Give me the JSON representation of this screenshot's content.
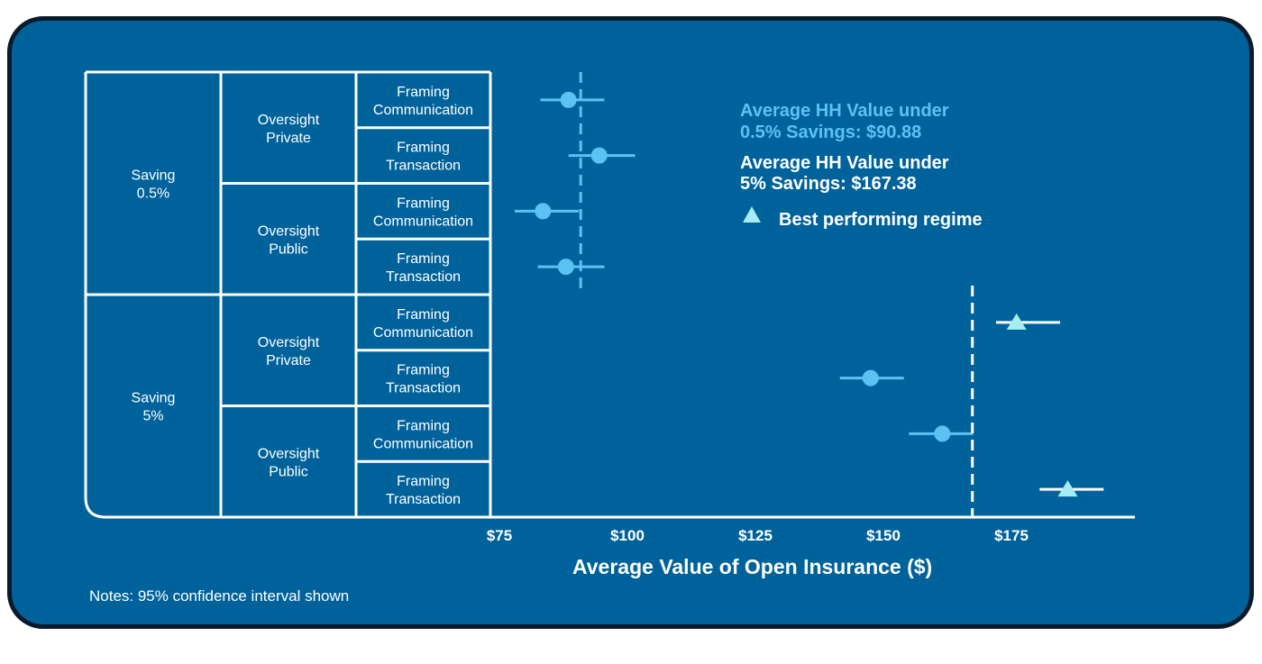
{
  "chart_data": {
    "type": "scatter",
    "xlabel": "Average Value of Open Insurance ($)",
    "xlim": [
      75,
      195
    ],
    "x_ticks": [
      "$75",
      "$100",
      "$125",
      "$150",
      "$175"
    ],
    "x_tick_values": [
      75,
      100,
      125,
      150,
      175
    ],
    "groups": [
      {
        "label": "Saving 0.5%",
        "subgroups": [
          {
            "label": "Oversight Private",
            "rows": [
              {
                "label": "Framing Communication",
                "mean": 88.5,
                "ci": [
                  83,
                  95.5
                ],
                "best": false
              },
              {
                "label": "Framing Transaction",
                "mean": 94.5,
                "ci": [
                  88.5,
                  101.5
                ],
                "best": false
              }
            ]
          },
          {
            "label": "Oversight Public",
            "rows": [
              {
                "label": "Framing Communication",
                "mean": 83.5,
                "ci": [
                  78,
                  90.5
                ],
                "best": false
              },
              {
                "label": "Framing Transaction",
                "mean": 88,
                "ci": [
                  82.5,
                  95.5
                ],
                "best": false
              }
            ]
          }
        ]
      },
      {
        "label": "Saving 5%",
        "subgroups": [
          {
            "label": "Oversight Private",
            "rows": [
              {
                "label": "Framing Communication",
                "mean": 176,
                "ci": [
                  172,
                  184.5
                ],
                "best": true
              },
              {
                "label": "Framing Transaction",
                "mean": 147.5,
                "ci": [
                  141.5,
                  154
                ],
                "best": false
              }
            ]
          },
          {
            "label": "Oversight Public",
            "rows": [
              {
                "label": "Framing Communication",
                "mean": 161.5,
                "ci": [
                  155,
                  167.5
                ],
                "best": false
              },
              {
                "label": "Framing Transaction",
                "mean": 186,
                "ci": [
                  180.5,
                  193
                ],
                "best": true
              }
            ]
          }
        ]
      }
    ],
    "reference_lines": [
      {
        "value": 90.88,
        "group": "Saving 0.5%",
        "label": "Average HH Value under 0.5% Savings: $90.88",
        "color": "#5bc2f4"
      },
      {
        "value": 167.38,
        "group": "Saving 5%",
        "label": "Average HH Value under 5% Savings: $167.38",
        "color": "#ffffff"
      }
    ],
    "legend": {
      "marker": "triangle",
      "label": "Best performing regime",
      "placement": "top-right"
    },
    "note": "Notes: 95% confidence interval shown",
    "colors": {
      "background": "#00629a",
      "border": "#0b1a2a",
      "point": "#5bc2f4",
      "best_point": "#a6ecf2",
      "best_ci": "#ffffff",
      "line": "#ffffff"
    }
  },
  "annotations": {
    "line1a": "Average HH Value under",
    "line1b": "0.5% Savings: $90.88",
    "line2a": "Average HH Value under",
    "line2b": "5% Savings: $167.38",
    "legend_label": "Best performing regime"
  }
}
